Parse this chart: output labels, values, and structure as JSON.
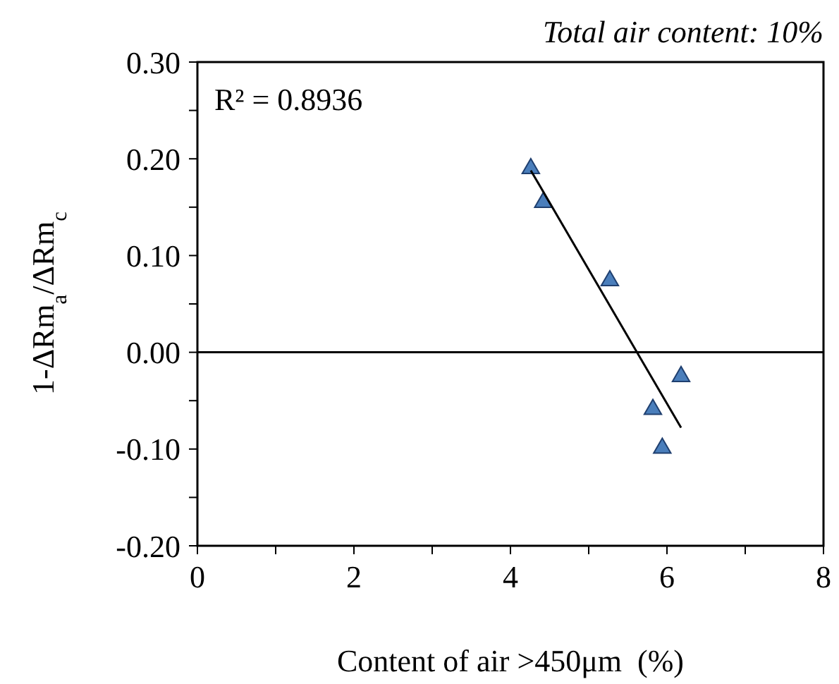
{
  "chart_data": {
    "type": "scatter",
    "title": "Total air content: 10%",
    "xlabel": "Content of air >450μm  (%)",
    "ylabel": "1-ΔRm$_{a}$/ΔRm$_{c}$",
    "annotations": [
      "R² = 0.8936"
    ],
    "xlim": [
      0,
      8
    ],
    "xticks": [
      0,
      {
        "value": 1,
        "label": null
      },
      2,
      {
        "value": 3,
        "label": null
      },
      4,
      {
        "value": 5,
        "label": null
      },
      6,
      {
        "value": 7,
        "label": null
      },
      8
    ],
    "ylim": [
      -0.2,
      0.3
    ],
    "yticks": [
      {
        "value": -0.2,
        "label": "-0.20"
      },
      {
        "value": -0.15,
        "label": null
      },
      {
        "value": -0.1,
        "label": "-0.10"
      },
      {
        "value": -0.05,
        "label": null
      },
      {
        "value": 0,
        "label": "0.00"
      },
      {
        "value": 0.05,
        "label": null
      },
      {
        "value": 0.1,
        "label": "0.10"
      },
      {
        "value": 0.15,
        "label": null
      },
      {
        "value": 0.2,
        "label": "0.20"
      },
      {
        "value": 0.25,
        "label": null
      },
      {
        "value": 0.3,
        "label": "0.30"
      }
    ],
    "ref_lines": [
      {
        "axis": "y",
        "value": 0,
        "color": "#000000"
      }
    ],
    "series": [
      {
        "marker": "triangle",
        "color": "#4a7ebb",
        "x": [
          4.26,
          4.42,
          5.27,
          6.18,
          5.82,
          5.94
        ],
        "values": [
          0.19,
          0.155,
          0.074,
          -0.025,
          -0.059,
          -0.099
        ]
      },
      {
        "type": "line",
        "marker": "none",
        "color": "#000000",
        "x": [
          4.26,
          6.18
        ],
        "values": [
          0.188,
          -0.078
        ]
      }
    ]
  }
}
